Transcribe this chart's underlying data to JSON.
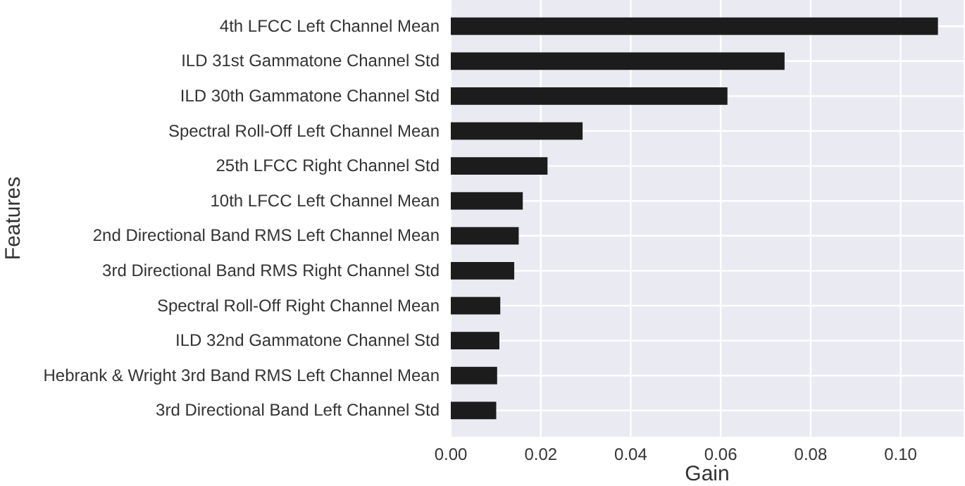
{
  "chart_data": {
    "type": "bar",
    "orientation": "horizontal",
    "xlabel": "Gain",
    "ylabel": "Features",
    "categories": [
      "4th LFCC Left Channel Mean",
      "ILD 31st Gammatone Channel Std",
      "ILD 30th Gammatone Channel Std",
      "Spectral Roll-Off Left Channel Mean",
      "25th LFCC Right Channel Std",
      "10th LFCC Left Channel Mean",
      "2nd Directional Band RMS Left Channel Mean",
      "3rd Directional Band RMS Right Channel Std",
      "Spectral Roll-Off Right Channel Mean",
      "ILD 32nd Gammatone Channel Std",
      "Hebrank & Wright 3rd Band RMS Left Channel Mean",
      "3rd Directional Band Left Channel Std"
    ],
    "values": [
      0.1083,
      0.0742,
      0.0615,
      0.0293,
      0.0215,
      0.016,
      0.0151,
      0.0141,
      0.011,
      0.0108,
      0.0103,
      0.0101
    ],
    "color": "#1c1c1c",
    "xlim": [
      0,
      0.114
    ],
    "xticks": [
      {
        "value": 0,
        "label": "0.00"
      },
      {
        "value": 0.02,
        "label": "0.02"
      },
      {
        "value": 0.04,
        "label": "0.04"
      },
      {
        "value": 0.06,
        "label": "0.06"
      },
      {
        "value": 0.08,
        "label": "0.08"
      },
      {
        "value": 0.1,
        "label": "0.10"
      }
    ],
    "grid": true
  }
}
